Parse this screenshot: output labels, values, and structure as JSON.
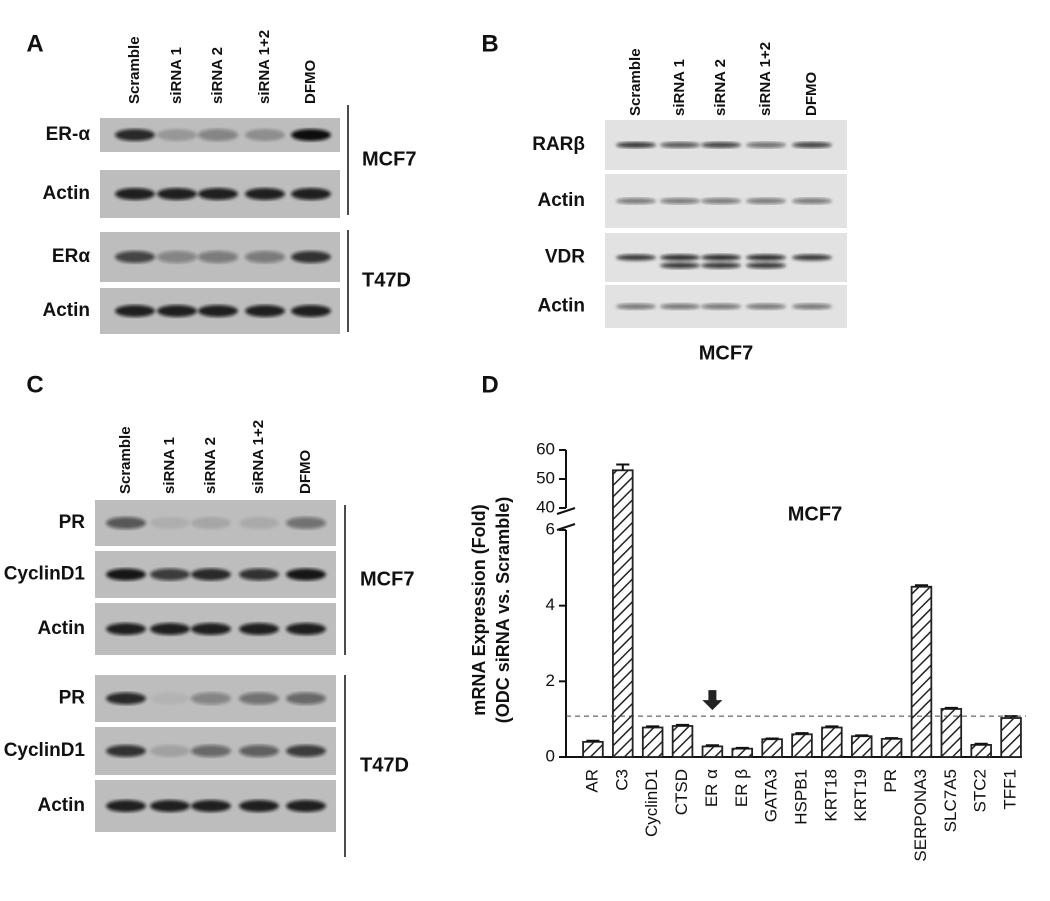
{
  "panels": {
    "A": {
      "letter": "A",
      "lanes": [
        "Scramble",
        "siRNA 1",
        "siRNA 2",
        "siRNA 1+2",
        "DFMO"
      ],
      "rows": [
        "ER-α",
        "Actin",
        "ERα",
        "Actin"
      ],
      "groups": [
        "MCF7",
        "T47D"
      ]
    },
    "B": {
      "letter": "B",
      "lanes": [
        "Scramble",
        "siRNA 1",
        "siRNA 2",
        "siRNA 1+2",
        "DFMO"
      ],
      "rows": [
        "RARβ",
        "Actin",
        "VDR",
        "Actin"
      ],
      "caption": "MCF7"
    },
    "C": {
      "letter": "C",
      "lanes": [
        "Scramble",
        "siRNA 1",
        "siRNA 2",
        "siRNA 1+2",
        "DFMO"
      ],
      "rows": [
        "PR",
        "CyclinD1",
        "Actin",
        "PR",
        "CyclinD1",
        "Actin"
      ],
      "groups": [
        "MCF7",
        "T47D"
      ]
    }
  },
  "chart_data": {
    "type": "bar",
    "letter": "D",
    "title": "MCF7",
    "y_label": [
      "mRNA Expression (Fold)",
      "(ODC siRNA vs. Scramble)"
    ],
    "categories": [
      "AR",
      "C3",
      "CyclinD1",
      "CTSD",
      "ER α",
      "ER β",
      "GATA3",
      "HSPB1",
      "KRT18",
      "KRT19",
      "PR",
      "SERPONA3",
      "SLC7A5",
      "STC2",
      "TFF1"
    ],
    "values": [
      0.4,
      53,
      0.78,
      0.82,
      0.28,
      0.22,
      0.47,
      0.6,
      0.78,
      0.55,
      0.48,
      4.5,
      1.27,
      0.32,
      1.03
    ],
    "errors": [
      0.03,
      2,
      0.03,
      0.03,
      0.03,
      0.02,
      0.02,
      0.03,
      0.03,
      0.02,
      0.02,
      0.04,
      0.03,
      0.03,
      0.05
    ],
    "color": "#222222",
    "ylim": [
      0,
      60
    ],
    "axis_break": [
      6,
      40
    ],
    "yticks": [
      0,
      2,
      4,
      6,
      40,
      50,
      60
    ],
    "reference_line": 1.08
  }
}
